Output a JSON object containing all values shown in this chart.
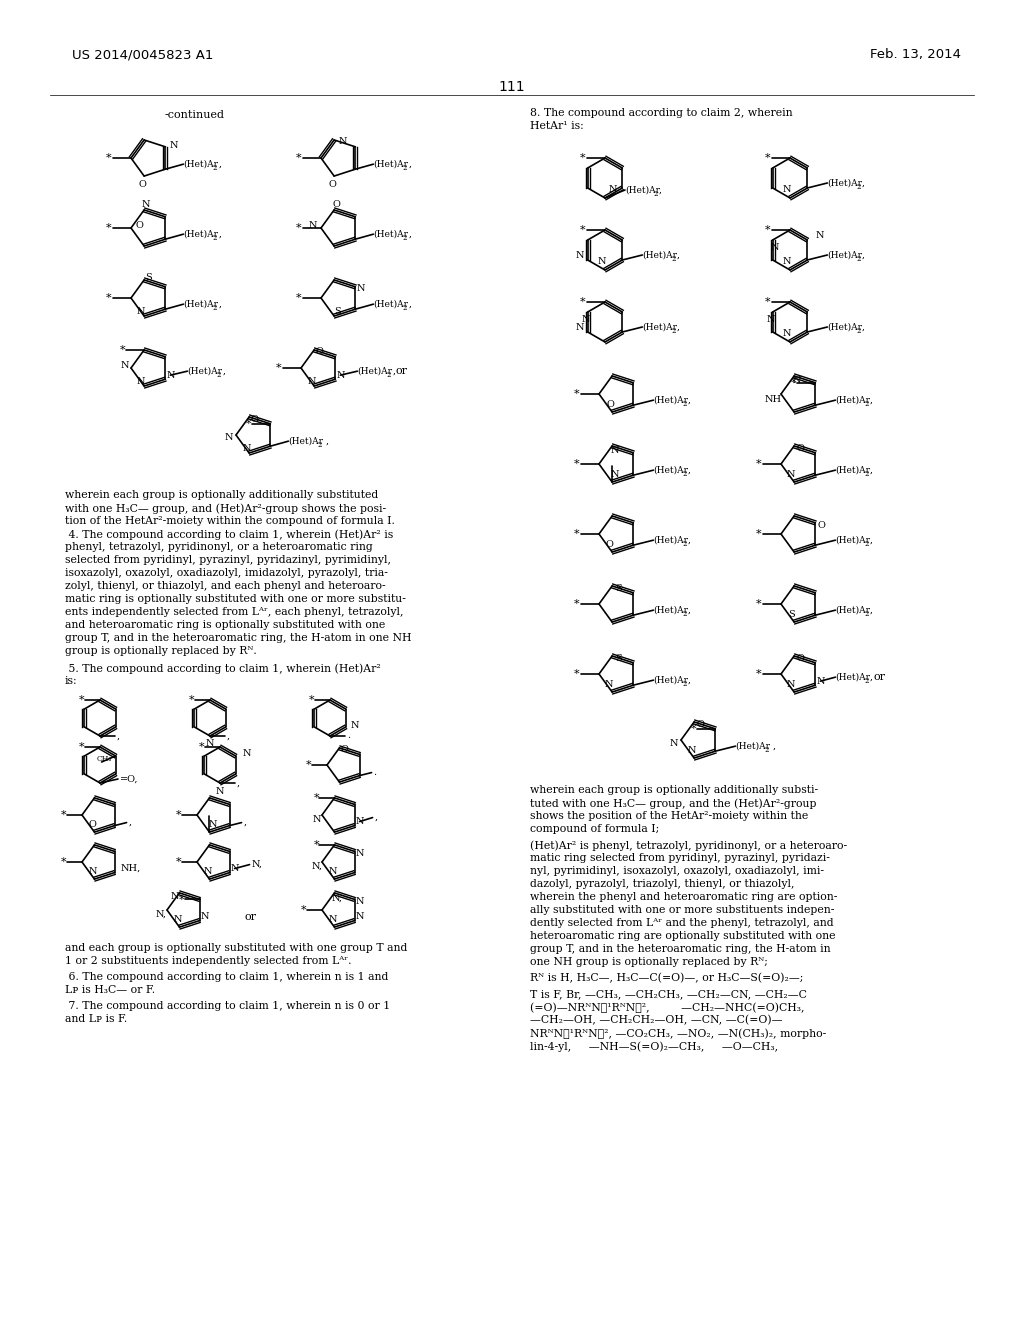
{
  "patent_number": "US 2014/0045823 A1",
  "patent_date": "Feb. 13, 2014",
  "page_number": "111",
  "background_color": "#ffffff",
  "text_color": "#000000"
}
